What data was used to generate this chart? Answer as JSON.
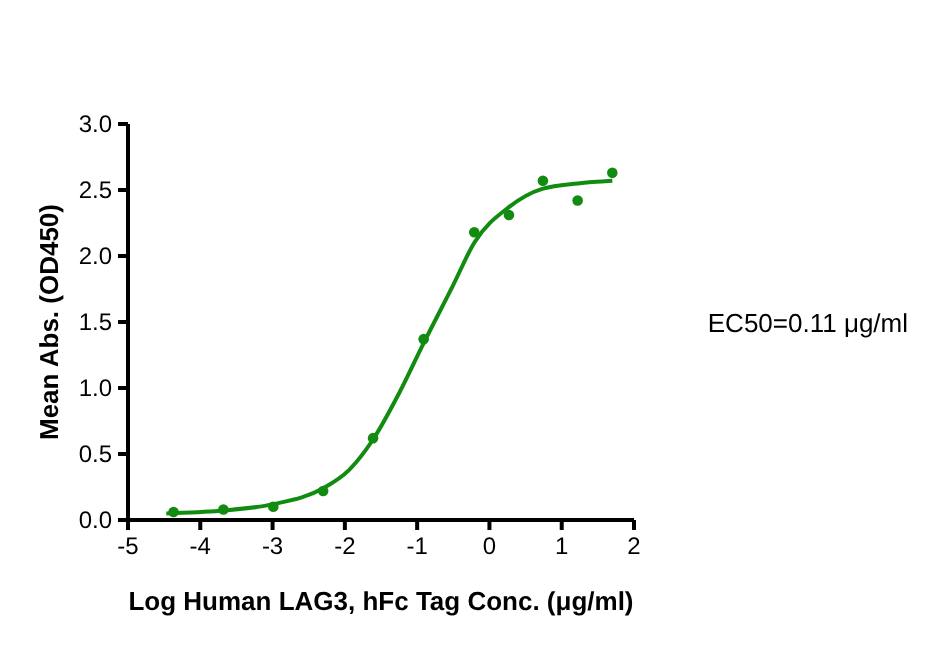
{
  "chart_data": {
    "type": "scatter",
    "xlabel": "Log Human LAG3, hFc Tag Conc. (μg/ml)",
    "ylabel": "Mean Abs. (OD450)",
    "annotations": [
      "EC50=0.11 μg/ml"
    ],
    "xlim": [
      -5,
      2
    ],
    "xticks": [
      -5,
      -4,
      -3,
      -2,
      -1,
      0,
      1,
      2
    ],
    "ylim": [
      0,
      3
    ],
    "yticks": [
      {
        "value": 0,
        "label": "0.0"
      },
      {
        "value": 0.5,
        "label": "0.5"
      },
      {
        "value": 1,
        "label": "1.0"
      },
      {
        "value": 1.5,
        "label": "1.5"
      },
      {
        "value": 2,
        "label": "2.0"
      },
      {
        "value": 2.5,
        "label": "2.5"
      },
      {
        "value": 3,
        "label": "3.0"
      }
    ],
    "grid": false,
    "series": [
      {
        "color": "#118c11",
        "marker": "circle",
        "x": [
          -4.37,
          -3.68,
          -2.99,
          -2.3,
          -1.61,
          -0.91,
          -0.21,
          0.27,
          0.74,
          1.22,
          1.7
        ],
        "values": [
          0.06,
          0.08,
          0.1,
          0.22,
          0.62,
          1.37,
          2.18,
          2.31,
          2.57,
          2.42,
          2.63
        ]
      },
      {
        "type": "line",
        "color": "#118c11",
        "marker": "none",
        "line_style": "solid",
        "x": [
          -4.47,
          -3.73,
          -2.99,
          -2.3,
          -1.94,
          -1.61,
          -1.25,
          -0.91,
          -0.51,
          -0.21,
          0.27,
          0.74,
          1.22,
          1.7
        ],
        "values": [
          0.05,
          0.07,
          0.12,
          0.24,
          0.38,
          0.61,
          0.96,
          1.34,
          1.77,
          2.1,
          2.37,
          2.51,
          2.55,
          2.57
        ]
      }
    ]
  }
}
